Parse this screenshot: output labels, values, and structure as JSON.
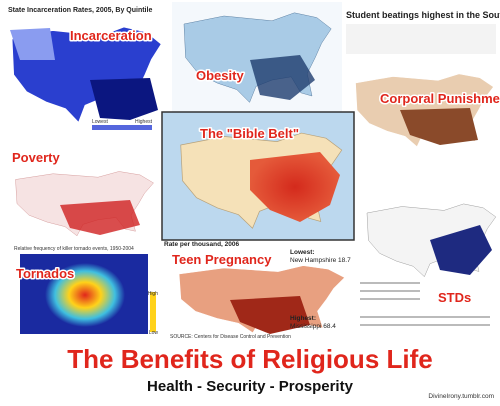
{
  "panels": {
    "incarceration": {
      "title": "State Incarceration Rates, 2005, By Quintile",
      "label": "Incarceration",
      "legend_low": "Lowest",
      "legend_high": "Highest"
    },
    "obesity": {
      "label": "Obesity"
    },
    "corporal": {
      "title": "Student beatings highest in the South",
      "label": "Corporal Punishment"
    },
    "bible_belt": {
      "label": "The \"Bible Belt\""
    },
    "poverty": {
      "label": "Poverty"
    },
    "tornados": {
      "title": "Relative frequency of killer tornado events, 1950-2004",
      "label": "Tornados",
      "legend_high": "High",
      "legend_low": "Low"
    },
    "teen_pregnancy": {
      "title": "Rate per thousand, 2006",
      "lowest": "Lowest:",
      "lowest_value": "New Hampshire 18.7",
      "label": "Teen Pregnancy",
      "highest": "Highest:",
      "highest_value": "Mississippi 68.4",
      "source": "SOURCE: Centers for Disease Control and Prevention"
    },
    "stds": {
      "label": "STDs"
    }
  },
  "footer": {
    "title": "The Benefits of Religious Life",
    "subtitle": "Health - Security - Prosperity",
    "credit": "DivineIrony.tumblr.com"
  }
}
